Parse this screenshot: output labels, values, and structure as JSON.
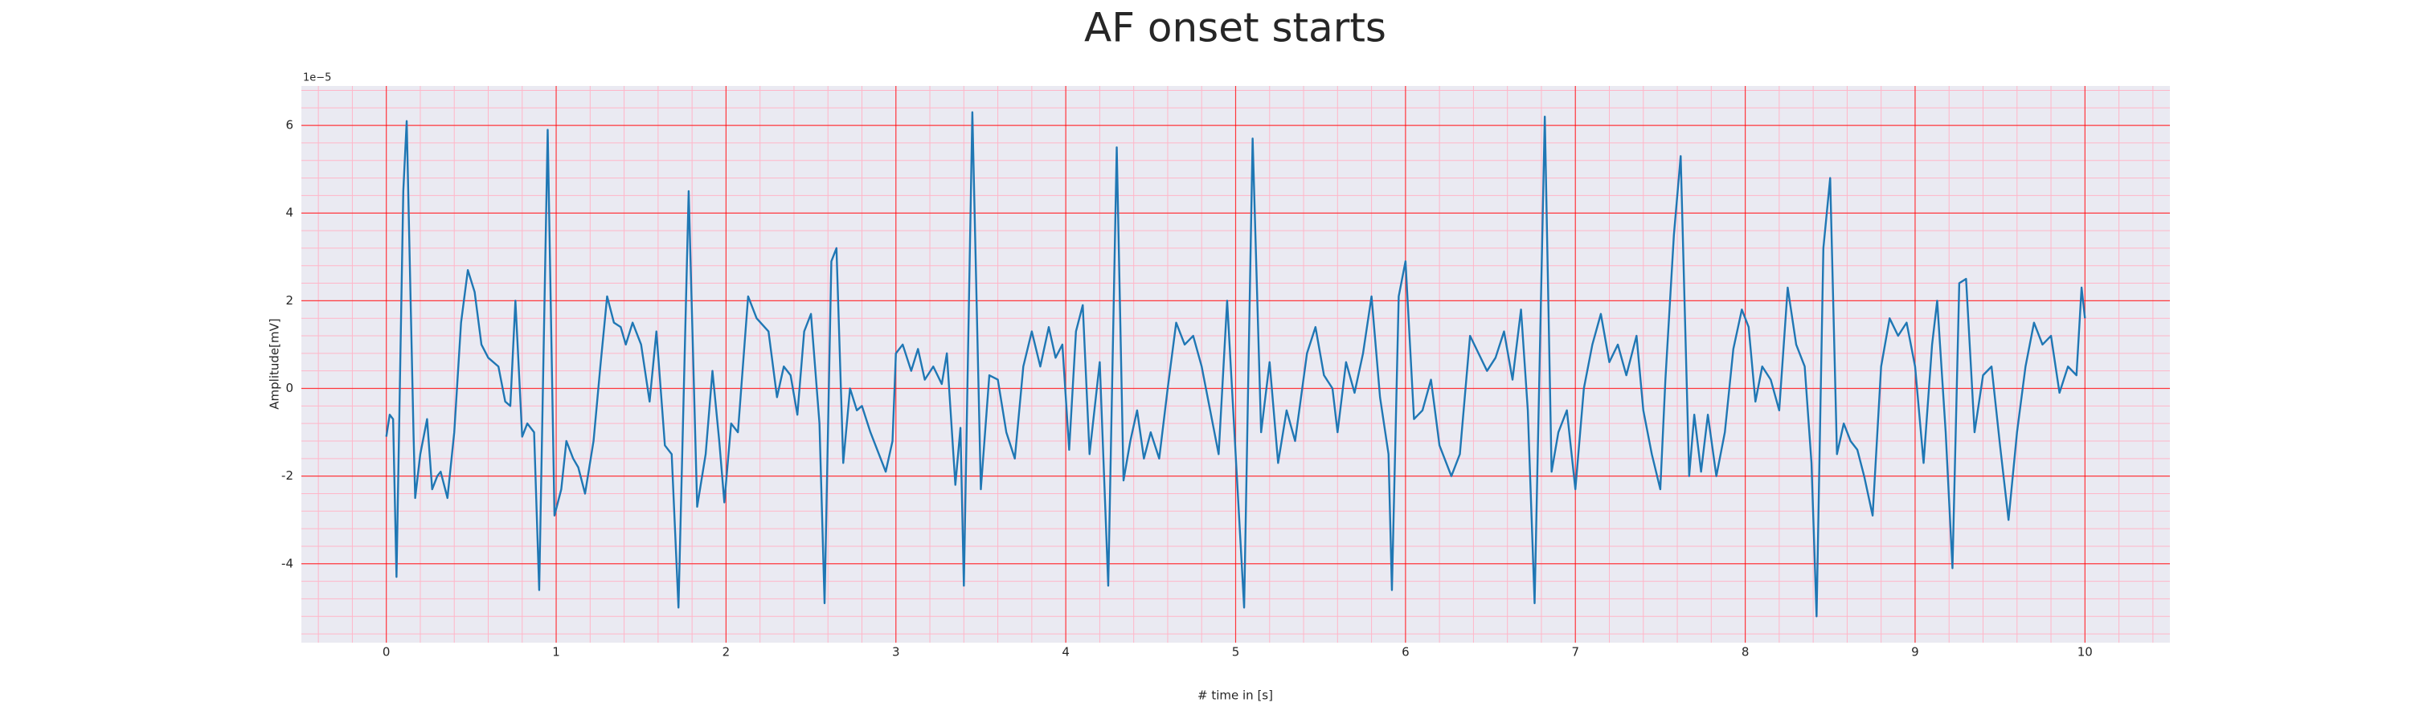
{
  "chart_data": {
    "type": "line",
    "title": "AF onset starts",
    "xlabel": "# time in [s]",
    "ylabel": "Amplitude[mV]",
    "y_offset_label": "1e−5",
    "color": "#1f77b4",
    "grid": true,
    "grid_color": "#ff0000",
    "minor_grid": true,
    "minor_grid_color": "#ffb6c8",
    "background": "#eaeaf2",
    "xlim": [
      -0.5,
      10.5
    ],
    "ylim": [
      -5.8,
      6.9
    ],
    "xticks": [
      0,
      1,
      2,
      3,
      4,
      5,
      6,
      7,
      8,
      9,
      10
    ],
    "yticks": [
      -4,
      -2,
      0,
      2,
      4,
      6
    ],
    "x": [
      0,
      0.02,
      0.04,
      0.06,
      0.1,
      0.12,
      0.16,
      0.17,
      0.2,
      0.24,
      0.27,
      0.3,
      0.32,
      0.36,
      0.4,
      0.44,
      0.48,
      0.52,
      0.56,
      0.6,
      0.66,
      0.7,
      0.73,
      0.76,
      0.8,
      0.83,
      0.87,
      0.9,
      0.95,
      0.99,
      1.03,
      1.06,
      1.1,
      1.13,
      1.17,
      1.22,
      1.26,
      1.3,
      1.34,
      1.38,
      1.41,
      1.45,
      1.5,
      1.55,
      1.59,
      1.64,
      1.68,
      1.72,
      1.78,
      1.83,
      1.88,
      1.92,
      1.96,
      1.99,
      2.03,
      2.07,
      2.13,
      2.18,
      2.25,
      2.3,
      2.34,
      2.38,
      2.42,
      2.46,
      2.5,
      2.55,
      2.58,
      2.62,
      2.65,
      2.69,
      2.73,
      2.77,
      2.8,
      2.85,
      2.9,
      2.94,
      2.98,
      3.0,
      3.04,
      3.09,
      3.13,
      3.17,
      3.22,
      3.27,
      3.3,
      3.35,
      3.38,
      3.4,
      3.45,
      3.5,
      3.55,
      3.6,
      3.65,
      3.7,
      3.75,
      3.8,
      3.85,
      3.9,
      3.94,
      3.98,
      4.02,
      4.06,
      4.1,
      4.14,
      4.2,
      4.25,
      4.3,
      4.34,
      4.38,
      4.42,
      4.46,
      4.5,
      4.55,
      4.6,
      4.65,
      4.7,
      4.75,
      4.8,
      4.85,
      4.9,
      4.95,
      5.0,
      5.05,
      5.1,
      5.15,
      5.2,
      5.25,
      5.3,
      5.35,
      5.42,
      5.47,
      5.52,
      5.57,
      5.6,
      5.65,
      5.7,
      5.75,
      5.8,
      5.85,
      5.9,
      5.92,
      5.96,
      6.0,
      6.05,
      6.1,
      6.15,
      6.2,
      6.27,
      6.32,
      6.38,
      6.43,
      6.48,
      6.53,
      6.58,
      6.63,
      6.68,
      6.72,
      6.76,
      6.82,
      6.86,
      6.9,
      6.95,
      7.0,
      7.05,
      7.1,
      7.15,
      7.2,
      7.25,
      7.3,
      7.36,
      7.4,
      7.45,
      7.5,
      7.53,
      7.58,
      7.62,
      7.67,
      7.7,
      7.74,
      7.78,
      7.83,
      7.88,
      7.93,
      7.98,
      8.02,
      8.06,
      8.1,
      8.15,
      8.2,
      8.25,
      8.3,
      8.35,
      8.39,
      8.42,
      8.46,
      8.5,
      8.54,
      8.58,
      8.62,
      8.66,
      8.7,
      8.75,
      8.8,
      8.85,
      8.9,
      8.95,
      9.0,
      9.05,
      9.1,
      9.13,
      9.18,
      9.22,
      9.26,
      9.3,
      9.35,
      9.4,
      9.45,
      9.5,
      9.55,
      9.6,
      9.65,
      9.7,
      9.75,
      9.8,
      9.85,
      9.9,
      9.95,
      9.98,
      10.0
    ],
    "values": [
      -1.1,
      -0.6,
      -0.7,
      -4.3,
      4.5,
      6.1,
      -1,
      -2.5,
      -1.5,
      -0.7,
      -2.3,
      -2.0,
      -1.9,
      -2.5,
      -1,
      1.5,
      2.7,
      2.2,
      1.0,
      0.7,
      0.5,
      -0.3,
      -0.4,
      2.0,
      -1.1,
      -0.8,
      -1.0,
      -4.6,
      5.9,
      -2.9,
      -2.3,
      -1.2,
      -1.6,
      -1.8,
      -2.4,
      -1.2,
      0.5,
      2.1,
      1.5,
      1.4,
      1.0,
      1.5,
      1.0,
      -0.3,
      1.3,
      -1.3,
      -1.5,
      -5.0,
      4.5,
      -2.7,
      -1.5,
      0.4,
      -1.2,
      -2.6,
      -0.8,
      -1.0,
      2.1,
      1.6,
      1.3,
      -0.2,
      0.5,
      0.3,
      -0.6,
      1.3,
      1.7,
      -0.8,
      -4.9,
      2.9,
      3.2,
      -1.7,
      0,
      -0.5,
      -0.4,
      -1.0,
      -1.5,
      -1.9,
      -1.2,
      0.8,
      1.0,
      0.4,
      0.9,
      0.2,
      0.5,
      0.1,
      0.8,
      -2.2,
      -0.9,
      -4.5,
      6.3,
      -2.3,
      0.3,
      0.2,
      -1.0,
      -1.6,
      0.5,
      1.3,
      0.5,
      1.4,
      0.7,
      1.0,
      -1.4,
      1.3,
      1.9,
      -1.5,
      0.6,
      -4.5,
      5.5,
      -2.1,
      -1.2,
      -0.5,
      -1.6,
      -1.0,
      -1.6,
      0,
      1.5,
      1.0,
      1.2,
      0.5,
      -0.5,
      -1.5,
      2.0,
      -1.5,
      -5.0,
      5.7,
      -1.0,
      0.6,
      -1.7,
      -0.5,
      -1.2,
      0.8,
      1.4,
      0.3,
      0,
      -1.0,
      0.6,
      -0.1,
      0.8,
      2.1,
      -0.2,
      -1.5,
      -4.6,
      2.1,
      2.9,
      -0.7,
      -0.5,
      0.2,
      -1.3,
      -2.0,
      -1.5,
      1.2,
      0.8,
      0.4,
      0.7,
      1.3,
      0.2,
      1.8,
      -0.5,
      -4.9,
      6.2,
      -1.9,
      -1.0,
      -0.5,
      -2.3,
      0.0,
      1.0,
      1.7,
      0.6,
      1.0,
      0.3,
      1.2,
      -0.5,
      -1.5,
      -2.3,
      0.2,
      3.5,
      5.3,
      -2.0,
      -0.6,
      -1.9,
      -0.6,
      -2.0,
      -1.0,
      0.9,
      1.8,
      1.4,
      -0.3,
      0.5,
      0.2,
      -0.5,
      2.3,
      1.0,
      0.5,
      -1.7,
      -5.2,
      3.2,
      4.8,
      -1.5,
      -0.8,
      -1.2,
      -1.4,
      -2.0,
      -2.9,
      0.5,
      1.6,
      1.2,
      1.5,
      0.5,
      -1.7,
      1.0,
      2.0,
      -1.0,
      -4.1,
      2.4,
      2.5,
      -1.0,
      0.3,
      0.5,
      -1.3,
      -3.0,
      -1.0,
      0.5,
      1.5,
      1.0,
      1.2,
      -0.1,
      0.5,
      0.3,
      2.3,
      1.6
    ]
  }
}
